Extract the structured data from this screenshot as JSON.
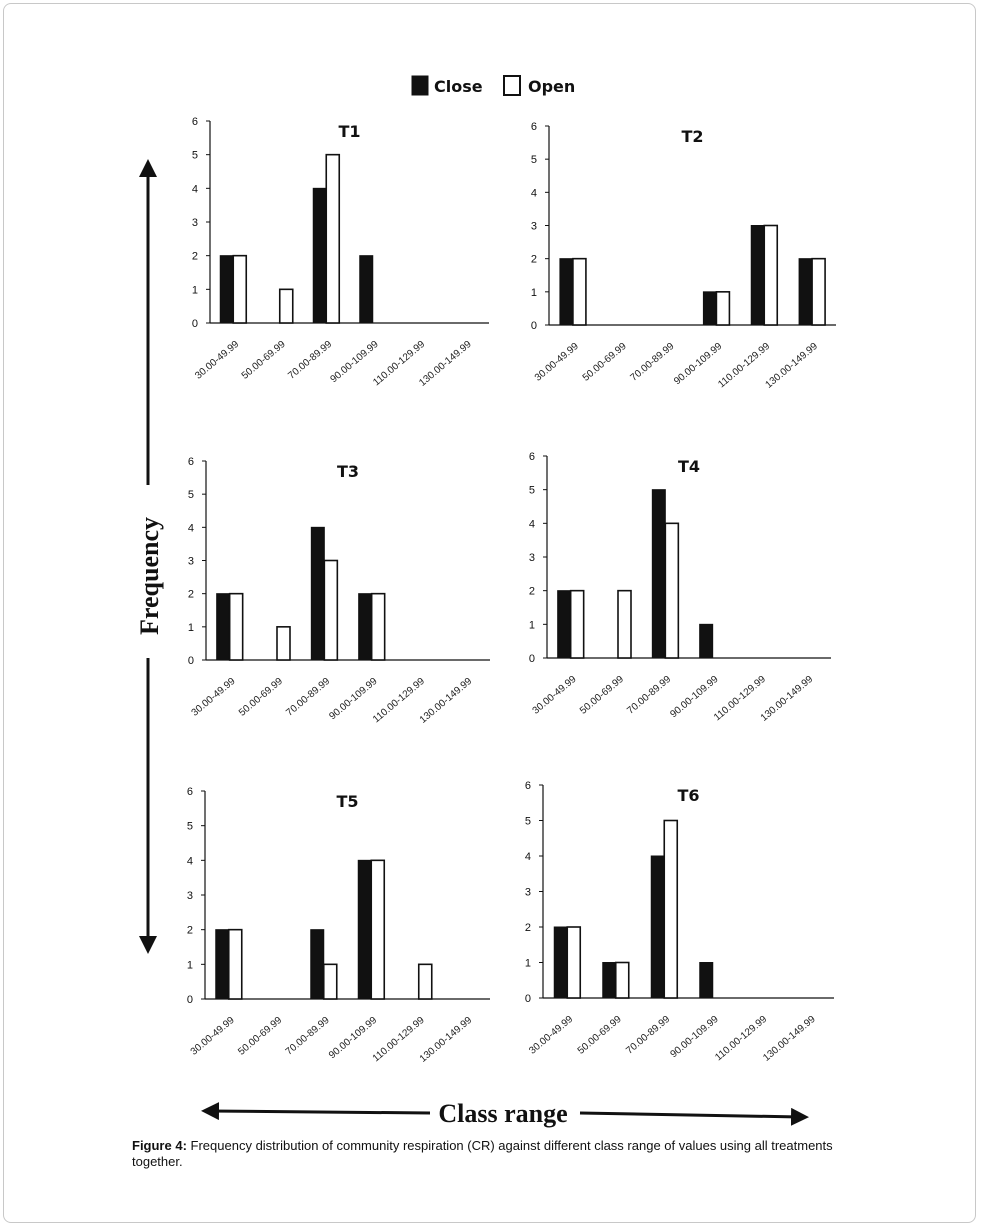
{
  "caption": {
    "label": "Figure 4:",
    "text": "Frequency distribution of community respiration (CR) against different class range of values using all treatments together."
  },
  "axis_titles": {
    "y": "Frequency",
    "x": "Class range"
  },
  "colors": {
    "close": "#111111",
    "open": "#ffffff",
    "outline": "#111111"
  },
  "chart_data": [
    {
      "type": "bar",
      "title": "T1",
      "categories": [
        "30.00-49.99",
        "50.00-69.99",
        "70.00-89.99",
        "90.00-109.99",
        "110.00-129.99",
        "130.00-149.99"
      ],
      "series": [
        {
          "name": "Close",
          "values": [
            2,
            0,
            4,
            2,
            0,
            0
          ]
        },
        {
          "name": "Open",
          "values": [
            2,
            1,
            5,
            0,
            0,
            0
          ]
        }
      ],
      "ylim": [
        0,
        6
      ],
      "yticks": [
        0,
        1,
        2,
        3,
        4,
        5,
        6
      ],
      "legend": "top"
    },
    {
      "type": "bar",
      "title": "T2",
      "categories": [
        "30.00-49.99",
        "50.00-69.99",
        "70.00-89.99",
        "90.00-109.99",
        "110.00-129.99",
        "130.00-149.99"
      ],
      "series": [
        {
          "name": "Close",
          "values": [
            2,
            0,
            0,
            1,
            3,
            2
          ]
        },
        {
          "name": "Open",
          "values": [
            2,
            0,
            0,
            1,
            3,
            2
          ]
        }
      ],
      "ylim": [
        0,
        6
      ],
      "yticks": [
        0,
        1,
        2,
        3,
        4,
        5,
        6
      ],
      "legend": "top"
    },
    {
      "type": "bar",
      "title": "T3",
      "categories": [
        "30.00-49.99",
        "50.00-69.99",
        "70.00-89.99",
        "90.00-109.99",
        "110.00-129.99",
        "130.00-149.99"
      ],
      "series": [
        {
          "name": "Close",
          "values": [
            2,
            0,
            4,
            2,
            0,
            0
          ]
        },
        {
          "name": "Open",
          "values": [
            2,
            1,
            3,
            2,
            0,
            0
          ]
        }
      ],
      "ylim": [
        0,
        6
      ],
      "yticks": [
        0,
        1,
        2,
        3,
        4,
        5,
        6
      ],
      "legend": "top"
    },
    {
      "type": "bar",
      "title": "T4",
      "categories": [
        "30.00-49.99",
        "50.00-69.99",
        "70.00-89.99",
        "90.00-109.99",
        "110.00-129.99",
        "130.00-149.99"
      ],
      "series": [
        {
          "name": "Close",
          "values": [
            2,
            0,
            5,
            1,
            0,
            0
          ]
        },
        {
          "name": "Open",
          "values": [
            2,
            2,
            4,
            0,
            0,
            0
          ]
        }
      ],
      "ylim": [
        0,
        6
      ],
      "yticks": [
        0,
        1,
        2,
        3,
        4,
        5,
        6
      ],
      "legend": "top"
    },
    {
      "type": "bar",
      "title": "T5",
      "categories": [
        "30.00-49.99",
        "50.00-69.99",
        "70.00-89.99",
        "90.00-109.99",
        "110.00-129.99",
        "130.00-149.99"
      ],
      "series": [
        {
          "name": "Close",
          "values": [
            2,
            0,
            2,
            4,
            0,
            0
          ]
        },
        {
          "name": "Open",
          "values": [
            2,
            0,
            1,
            4,
            1,
            0
          ]
        }
      ],
      "ylim": [
        0,
        6
      ],
      "yticks": [
        0,
        1,
        2,
        3,
        4,
        5,
        6
      ],
      "legend": "top"
    },
    {
      "type": "bar",
      "title": "T6",
      "categories": [
        "30.00-49.99",
        "50.00-69.99",
        "70.00-89.99",
        "90.00-109.99",
        "110.00-129.99",
        "130.00-149.99"
      ],
      "series": [
        {
          "name": "Close",
          "values": [
            2,
            1,
            4,
            1,
            0,
            0
          ]
        },
        {
          "name": "Open",
          "values": [
            2,
            1,
            5,
            0,
            0,
            0
          ]
        }
      ],
      "ylim": [
        0,
        6
      ],
      "yticks": [
        0,
        1,
        2,
        3,
        4,
        5,
        6
      ],
      "legend": "top"
    }
  ]
}
